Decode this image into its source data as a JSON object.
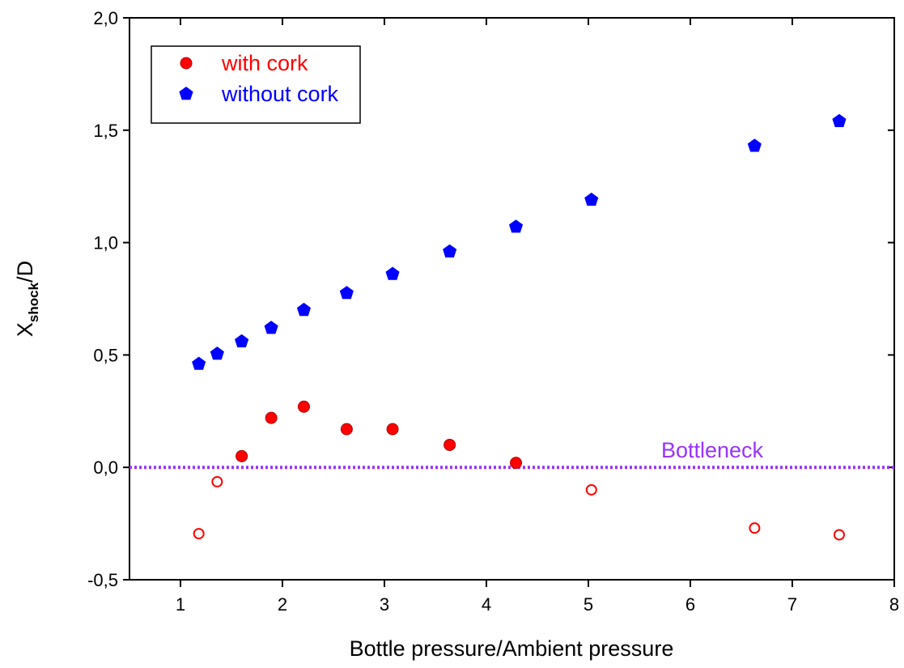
{
  "chart_data": {
    "type": "scatter",
    "xlabel": "Bottle pressure/Ambient pressure",
    "ylabel": {
      "main": "X",
      "sub": "shock",
      "tail": "/D"
    },
    "xlim": [
      0.5,
      8
    ],
    "xticks": [
      1,
      2,
      3,
      4,
      5,
      6,
      7,
      8
    ],
    "ylim": [
      -0.5,
      2
    ],
    "yticks": [
      {
        "value": -0.5,
        "label": "-0,5"
      },
      {
        "value": 0,
        "label": "0,0"
      },
      {
        "value": 0.5,
        "label": "0,5"
      },
      {
        "value": 1,
        "label": "1,0"
      },
      {
        "value": 1.5,
        "label": "1,5"
      },
      {
        "value": 2,
        "label": "2,0"
      }
    ],
    "series": [
      {
        "name": "with cork",
        "color": "#ff0000",
        "marker": "circle",
        "x": [
          1.6,
          1.89,
          2.21,
          2.63,
          3.08,
          3.64,
          4.29
        ],
        "values": [
          0.05,
          0.22,
          0.27,
          0.17,
          0.17,
          0.1,
          0.02
        ]
      },
      {
        "name": "without cork",
        "color": "#0000ff",
        "marker": "pentagon",
        "x": [
          1.18,
          1.36,
          1.6,
          1.89,
          2.21,
          2.63,
          3.08,
          3.64,
          4.29,
          5.03,
          6.63,
          7.46
        ],
        "values": [
          0.46,
          0.505,
          0.56,
          0.62,
          0.7,
          0.775,
          0.86,
          0.96,
          1.07,
          1.19,
          1.43,
          1.54
        ]
      },
      {
        "color": "#ff0000",
        "marker": "open-circle",
        "x": [
          1.18,
          1.36,
          5.03,
          6.63,
          7.46
        ],
        "values": [
          -0.295,
          -0.064,
          -0.1,
          -0.27,
          -0.3
        ]
      }
    ],
    "hline": {
      "value": 0,
      "label": "Bottleneck",
      "color": "#9933ff"
    },
    "legend": "upper left"
  }
}
